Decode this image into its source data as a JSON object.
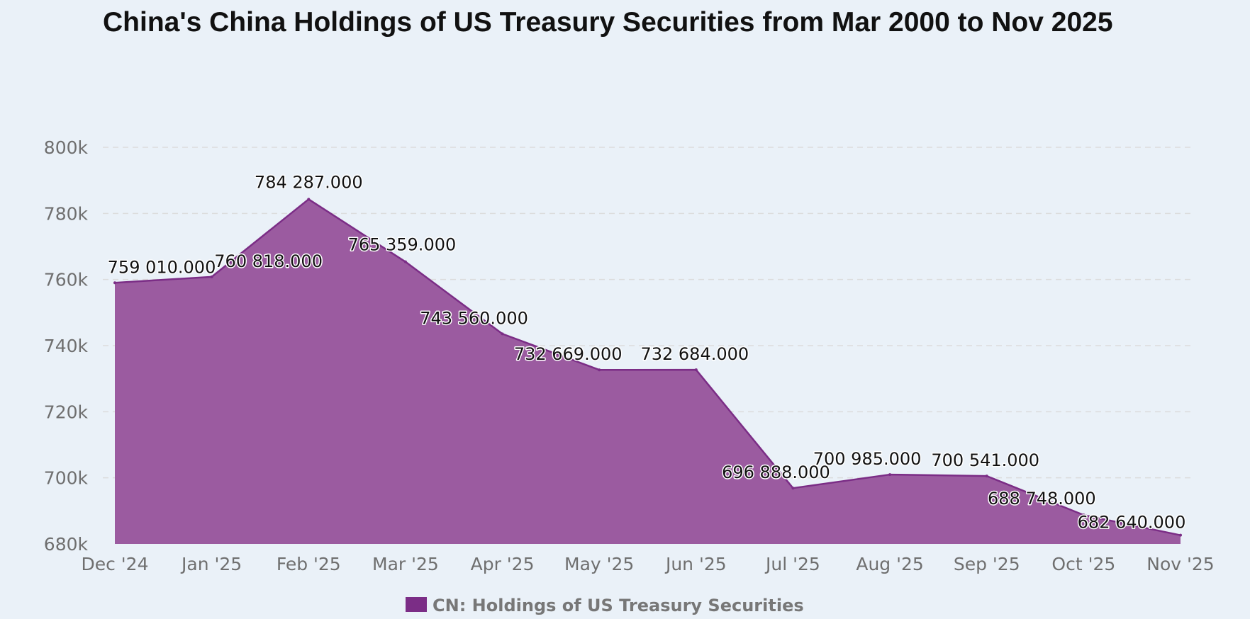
{
  "chart_data": {
    "type": "area",
    "title": "China's China Holdings of US Treasury Securities from Mar 2000 to Nov 2025",
    "xlabel": "",
    "ylabel": "",
    "categories": [
      "Dec '24",
      "Jan '25",
      "Feb '25",
      "Mar '25",
      "Apr '25",
      "May '25",
      "Jun '25",
      "Jul '25",
      "Aug '25",
      "Sep '25",
      "Oct '25",
      "Nov '25"
    ],
    "series": [
      {
        "name": "CN: Holdings of US Treasury Securities",
        "values": [
          759010,
          760818,
          784287,
          765359,
          743560,
          732669,
          732684,
          696888,
          700985,
          700541,
          688748,
          682640
        ],
        "labels": [
          "759 010.000",
          "760 818.000",
          "784 287.000",
          "765 359.000",
          "743 560.000",
          "732 669.000",
          "732 684.000",
          "696 888.000",
          "700 985.000",
          "700 541.000",
          "688 748.000",
          "682 640.000"
        ],
        "color": "#7b2d86"
      }
    ],
    "ylim": [
      680000,
      800000
    ],
    "yticks": [
      680000,
      700000,
      720000,
      740000,
      760000,
      780000,
      800000
    ],
    "ytick_labels": [
      "680k",
      "700k",
      "720k",
      "740k",
      "760k",
      "780k",
      "800k"
    ],
    "grid": true,
    "legend_position": "bottom-center"
  },
  "colors": {
    "background": "#eaf1f8",
    "area_fill": "#9b5ba0",
    "area_line": "#7b2d86",
    "legend_swatch": "#7b2d86"
  }
}
